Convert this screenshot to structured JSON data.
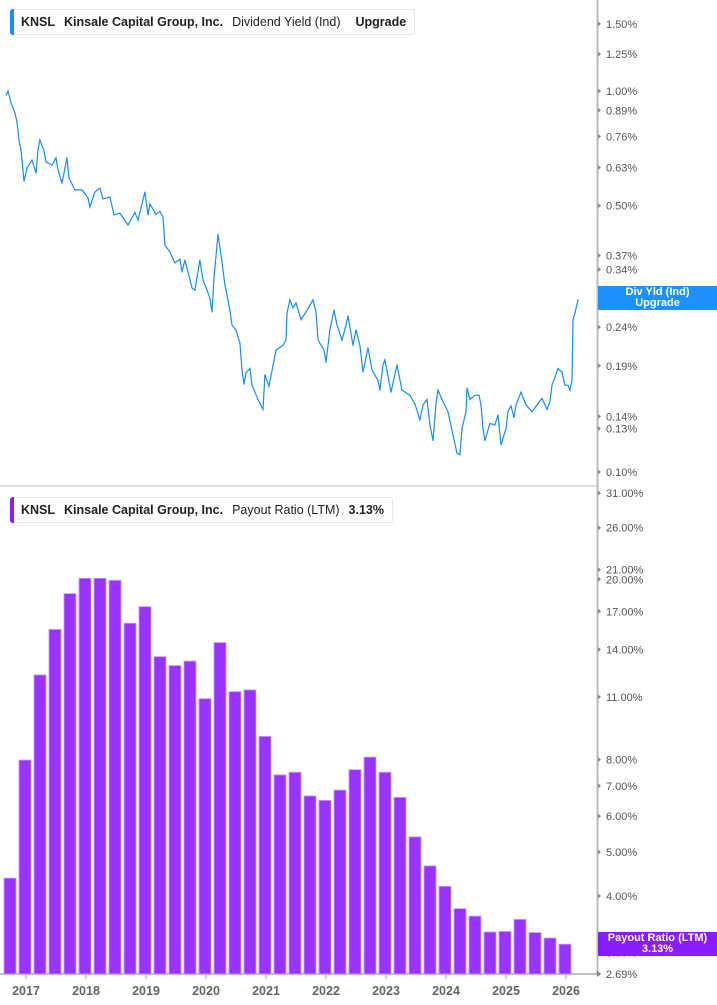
{
  "top_legend": {
    "ticker": "KNSL",
    "company": "Kinsale Capital Group, Inc.",
    "metric": "Dividend Yield (Ind)",
    "value": "Upgrade"
  },
  "bottom_legend": {
    "ticker": "KNSL",
    "company": "Kinsale Capital Group, Inc.",
    "metric": "Payout Ratio (LTM)",
    "value": "3.13%"
  },
  "top_tag": {
    "line1": "Div Yld (Ind)",
    "line2": "Upgrade"
  },
  "bottom_tag": {
    "line1": "Payout Ratio (LTM)",
    "line2": "3.13%"
  },
  "colors": {
    "yield": "#1a8cff",
    "payout": "#9933ff",
    "yield_tag": "#1e90ff",
    "payout_tag": "#8a1cff",
    "axis": "#bbbbbb"
  },
  "chart_data": [
    {
      "type": "line",
      "series_label": "Dividend Yield (Ind)",
      "y_scale": "log",
      "y_unit": "%",
      "ylim": [
        0.1,
        1.6
      ],
      "xlim": [
        "2016-08-01",
        "2026-04-01"
      ],
      "grid": false,
      "legend": "top-left",
      "y_ticks": [
        "1.50%",
        "1.25%",
        "1.00%",
        "0.89%",
        "0.76%",
        "0.63%",
        "0.50%",
        "0.37%",
        "0.34%",
        "0.29%",
        "0.24%",
        "0.19%",
        "0.14%",
        "0.13%",
        "0.10%"
      ],
      "points": [
        [
          "2016-09-01",
          0.976
        ],
        [
          "2016-09-13",
          1.0
        ],
        [
          "2016-10-01",
          0.93
        ],
        [
          "2016-10-25",
          0.876
        ],
        [
          "2016-11-07",
          0.829
        ],
        [
          "2016-11-19",
          0.744
        ],
        [
          "2016-12-01",
          0.7
        ],
        [
          "2016-12-19",
          0.58
        ],
        [
          "2017-01-07",
          0.628
        ],
        [
          "2017-02-07",
          0.659
        ],
        [
          "2017-03-01",
          0.609
        ],
        [
          "2017-03-13",
          0.7
        ],
        [
          "2017-03-25",
          0.744
        ],
        [
          "2017-04-19",
          0.696
        ],
        [
          "2017-05-01",
          0.652
        ],
        [
          "2017-06-07",
          0.639
        ],
        [
          "2017-07-01",
          0.668
        ],
        [
          "2017-07-13",
          0.621
        ],
        [
          "2017-08-07",
          0.573
        ],
        [
          "2017-09-07",
          0.668
        ],
        [
          "2017-09-19",
          0.591
        ],
        [
          "2017-10-25",
          0.55
        ],
        [
          "2017-12-07",
          0.55
        ],
        [
          "2018-01-13",
          0.524
        ],
        [
          "2018-01-25",
          0.496
        ],
        [
          "2018-02-25",
          0.543
        ],
        [
          "2018-03-25",
          0.556
        ],
        [
          "2018-04-13",
          0.521
        ],
        [
          "2018-05-25",
          0.527
        ],
        [
          "2018-06-19",
          0.473
        ],
        [
          "2018-07-25",
          0.478
        ],
        [
          "2018-09-13",
          0.445
        ],
        [
          "2018-10-25",
          0.48
        ],
        [
          "2018-11-13",
          0.458
        ],
        [
          "2018-12-25",
          0.543
        ],
        [
          "2019-01-13",
          0.473
        ],
        [
          "2019-01-25",
          0.505
        ],
        [
          "2019-03-01",
          0.475
        ],
        [
          "2019-03-25",
          0.483
        ],
        [
          "2019-04-13",
          0.467
        ],
        [
          "2019-04-25",
          0.394
        ],
        [
          "2019-05-25",
          0.378
        ],
        [
          "2019-06-25",
          0.354
        ],
        [
          "2019-07-25",
          0.362
        ],
        [
          "2019-08-07",
          0.335
        ],
        [
          "2019-08-25",
          0.36
        ],
        [
          "2019-10-07",
          0.304
        ],
        [
          "2019-10-25",
          0.3
        ],
        [
          "2019-11-25",
          0.36
        ],
        [
          "2019-12-13",
          0.319
        ],
        [
          "2020-01-07",
          0.3
        ],
        [
          "2020-01-25",
          0.286
        ],
        [
          "2020-02-07",
          0.263
        ],
        [
          "2020-02-19",
          0.323
        ],
        [
          "2020-03-13",
          0.421
        ],
        [
          "2020-04-07",
          0.356
        ],
        [
          "2020-04-25",
          0.31
        ],
        [
          "2020-05-25",
          0.266
        ],
        [
          "2020-06-07",
          0.243
        ],
        [
          "2020-07-01",
          0.236
        ],
        [
          "2020-07-25",
          0.218
        ],
        [
          "2020-08-07",
          0.185
        ],
        [
          "2020-08-19",
          0.17
        ],
        [
          "2020-09-01",
          0.182
        ],
        [
          "2020-09-25",
          0.187
        ],
        [
          "2020-10-07",
          0.169
        ],
        [
          "2020-11-13",
          0.155
        ],
        [
          "2020-12-13",
          0.146
        ],
        [
          "2020-12-25",
          0.18
        ],
        [
          "2021-01-19",
          0.168
        ],
        [
          "2021-03-01",
          0.209
        ],
        [
          "2021-04-13",
          0.215
        ],
        [
          "2021-05-01",
          0.222
        ],
        [
          "2021-05-07",
          0.261
        ],
        [
          "2021-05-25",
          0.283
        ],
        [
          "2021-06-13",
          0.27
        ],
        [
          "2021-07-01",
          0.278
        ],
        [
          "2021-08-01",
          0.251
        ],
        [
          "2021-09-01",
          0.263
        ],
        [
          "2021-09-25",
          0.274
        ],
        [
          "2021-10-13",
          0.283
        ],
        [
          "2021-11-01",
          0.263
        ],
        [
          "2021-11-13",
          0.222
        ],
        [
          "2021-12-19",
          0.209
        ],
        [
          "2022-01-01",
          0.194
        ],
        [
          "2022-01-25",
          0.236
        ],
        [
          "2022-02-19",
          0.266
        ],
        [
          "2022-03-07",
          0.243
        ],
        [
          "2022-04-07",
          0.222
        ],
        [
          "2022-05-01",
          0.243
        ],
        [
          "2022-05-13",
          0.257
        ],
        [
          "2022-06-13",
          0.215
        ],
        [
          "2022-07-01",
          0.236
        ],
        [
          "2022-07-25",
          0.215
        ],
        [
          "2022-08-13",
          0.183
        ],
        [
          "2022-09-13",
          0.212
        ],
        [
          "2022-10-07",
          0.185
        ],
        [
          "2022-11-13",
          0.174
        ],
        [
          "2022-11-25",
          0.164
        ],
        [
          "2022-12-13",
          0.191
        ],
        [
          "2022-12-25",
          0.197
        ],
        [
          "2023-02-01",
          0.162
        ],
        [
          "2023-03-07",
          0.191
        ],
        [
          "2023-04-07",
          0.164
        ],
        [
          "2023-05-25",
          0.159
        ],
        [
          "2023-06-25",
          0.151
        ],
        [
          "2023-07-25",
          0.137
        ],
        [
          "2023-08-13",
          0.15
        ],
        [
          "2023-09-07",
          0.155
        ],
        [
          "2023-09-25",
          0.133
        ],
        [
          "2023-10-13",
          0.121
        ],
        [
          "2023-11-01",
          0.151
        ],
        [
          "2023-11-13",
          0.164
        ],
        [
          "2023-12-07",
          0.155
        ],
        [
          "2024-01-13",
          0.144
        ],
        [
          "2024-02-13",
          0.125
        ],
        [
          "2024-03-07",
          0.112
        ],
        [
          "2024-03-25",
          0.111
        ],
        [
          "2024-04-07",
          0.13
        ],
        [
          "2024-05-01",
          0.144
        ],
        [
          "2024-05-07",
          0.166
        ],
        [
          "2024-05-25",
          0.155
        ],
        [
          "2024-06-25",
          0.159
        ],
        [
          "2024-07-19",
          0.159
        ],
        [
          "2024-08-01",
          0.15
        ],
        [
          "2024-08-13",
          0.13
        ],
        [
          "2024-08-25",
          0.121
        ],
        [
          "2024-09-25",
          0.134
        ],
        [
          "2024-10-25",
          0.133
        ],
        [
          "2024-11-13",
          0.141
        ],
        [
          "2024-12-01",
          0.118
        ],
        [
          "2025-01-01",
          0.13
        ],
        [
          "2025-01-13",
          0.144
        ],
        [
          "2025-02-01",
          0.149
        ],
        [
          "2025-02-19",
          0.139
        ],
        [
          "2025-03-01",
          0.15
        ],
        [
          "2025-04-01",
          0.162
        ],
        [
          "2025-05-01",
          0.15
        ],
        [
          "2025-06-07",
          0.144
        ],
        [
          "2025-07-07",
          0.15
        ],
        [
          "2025-08-07",
          0.156
        ],
        [
          "2025-09-07",
          0.146
        ],
        [
          "2025-09-25",
          0.153
        ],
        [
          "2025-10-07",
          0.169
        ],
        [
          "2025-11-13",
          0.187
        ],
        [
          "2025-12-07",
          0.183
        ],
        [
          "2025-12-25",
          0.169
        ],
        [
          "2026-01-13",
          0.169
        ],
        [
          "2026-01-25",
          0.164
        ],
        [
          "2026-02-07",
          0.174
        ],
        [
          "2026-02-13",
          0.251
        ],
        [
          "2026-02-25",
          0.261
        ],
        [
          "2026-03-13",
          0.283
        ]
      ]
    },
    {
      "type": "bar",
      "series_label": "Payout Ratio (LTM)",
      "y_scale": "log",
      "y_unit": "%",
      "ylim": [
        2.69,
        31.0
      ],
      "grid": false,
      "legend": "top-left",
      "x_ticks": [
        "2017",
        "2018",
        "2019",
        "2020",
        "2021",
        "2022",
        "2023",
        "2024",
        "2025",
        "2026"
      ],
      "y_ticks": [
        "31.00%",
        "26.00%",
        "21.00%",
        "20.00%",
        "17.00%",
        "14.00%",
        "11.00%",
        "8.00%",
        "7.00%",
        "6.00%",
        "5.00%",
        "4.00%",
        "3.00%",
        "2.69%"
      ],
      "categories": [
        "2016-09",
        "2016-12",
        "2017-03",
        "2017-06",
        "2017-09",
        "2017-12",
        "2018-03",
        "2018-06",
        "2018-09",
        "2018-12",
        "2019-03",
        "2019-06",
        "2019-09",
        "2019-12",
        "2020-03",
        "2020-06",
        "2020-09",
        "2020-12",
        "2021-03",
        "2021-06",
        "2021-09",
        "2021-12",
        "2022-03",
        "2022-06",
        "2022-09",
        "2022-12",
        "2023-03",
        "2023-06",
        "2023-09",
        "2023-12",
        "2024-03",
        "2024-06",
        "2024-09",
        "2024-12",
        "2025-03",
        "2025-06",
        "2025-09",
        "2025-12"
      ],
      "values": [
        4.38,
        7.98,
        12.3,
        15.5,
        18.6,
        20.1,
        20.1,
        19.9,
        16.0,
        17.4,
        13.5,
        12.9,
        13.2,
        10.9,
        14.5,
        11.3,
        11.4,
        9.0,
        7.4,
        7.5,
        6.65,
        6.5,
        6.85,
        7.6,
        8.1,
        7.5,
        6.6,
        5.4,
        4.66,
        4.2,
        3.75,
        3.61,
        3.33,
        3.34,
        3.55,
        3.32,
        3.23,
        3.13
      ]
    }
  ]
}
